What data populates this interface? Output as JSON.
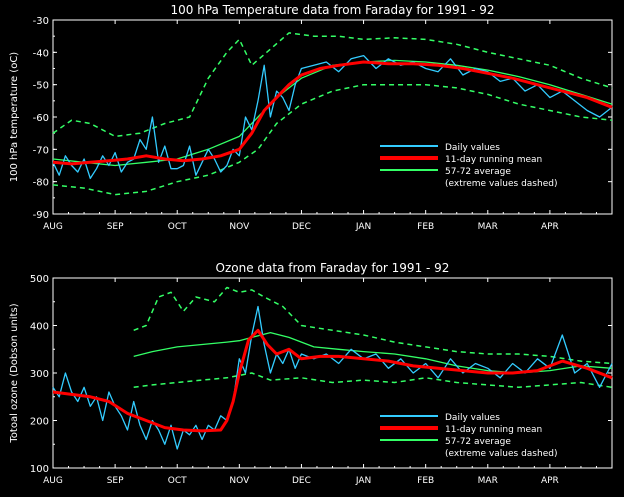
{
  "chart_data": [
    {
      "type": "line",
      "title": "100 hPa Temperature data from Faraday for 1991 - 92",
      "ylabel": "100 hPa temperature (oC)",
      "xlabel": "",
      "ylim": [
        -90,
        -30
      ],
      "yticks": [
        -30,
        -40,
        -50,
        -60,
        -70,
        -80,
        -90
      ],
      "xlim": [
        0,
        9
      ],
      "xticks": [
        "AUG",
        "SEP",
        "OCT",
        "NOV",
        "DEC",
        "JAN",
        "FEB",
        "MAR",
        "APR"
      ],
      "grid": false,
      "legend_position": "lower-right",
      "legend": [
        "Daily values",
        "11-day running mean",
        "57-72 average",
        "(extreme values dashed)"
      ],
      "series": [
        {
          "name": "Daily values",
          "color": "#33ccff",
          "x": [
            0.0,
            0.1,
            0.2,
            0.3,
            0.4,
            0.5,
            0.6,
            0.7,
            0.8,
            0.9,
            1.0,
            1.1,
            1.2,
            1.3,
            1.4,
            1.5,
            1.6,
            1.7,
            1.8,
            1.9,
            2.0,
            2.1,
            2.2,
            2.3,
            2.4,
            2.5,
            2.6,
            2.7,
            2.8,
            2.9,
            3.0,
            3.1,
            3.2,
            3.3,
            3.4,
            3.5,
            3.6,
            3.7,
            3.8,
            3.9,
            4.0,
            4.2,
            4.4,
            4.6,
            4.8,
            5.0,
            5.2,
            5.4,
            5.6,
            5.8,
            6.0,
            6.2,
            6.4,
            6.6,
            6.8,
            7.0,
            7.2,
            7.4,
            7.6,
            7.8,
            8.0,
            8.2,
            8.4,
            8.6,
            8.8,
            9.0
          ],
          "values": [
            -74,
            -78,
            -72,
            -75,
            -77,
            -73,
            -79,
            -76,
            -72,
            -75,
            -71,
            -77,
            -74,
            -73,
            -67,
            -70,
            -60,
            -74,
            -69,
            -76,
            -76,
            -75,
            -69,
            -78,
            -74,
            -70,
            -73,
            -77,
            -75,
            -70,
            -72,
            -60,
            -64,
            -55,
            -44,
            -60,
            -52,
            -54,
            -58,
            -50,
            -45,
            -44,
            -43,
            -46,
            -42,
            -41,
            -45,
            -42,
            -44,
            -43,
            -45,
            -46,
            -42,
            -47,
            -45,
            -46,
            -49,
            -48,
            -52,
            -50,
            -54,
            -52,
            -55,
            -58,
            -60,
            -57
          ]
        },
        {
          "name": "11-day running mean",
          "color": "#ff0000",
          "x": [
            0.0,
            0.3,
            0.6,
            0.9,
            1.2,
            1.5,
            1.8,
            2.1,
            2.4,
            2.7,
            3.0,
            3.2,
            3.4,
            3.6,
            3.8,
            4.0,
            4.3,
            4.6,
            5.0,
            5.4,
            5.8,
            6.2,
            6.6,
            7.0,
            7.4,
            7.8,
            8.2,
            8.6,
            9.0
          ],
          "values": [
            -74,
            -74.5,
            -74,
            -73.5,
            -73,
            -72,
            -73,
            -73.5,
            -73,
            -72,
            -70,
            -65,
            -58,
            -54,
            -50,
            -47,
            -45,
            -44,
            -43,
            -43.5,
            -43.5,
            -44,
            -45,
            -46.5,
            -48,
            -50,
            -52,
            -54,
            -57
          ]
        },
        {
          "name": "57-72 average",
          "color": "#33ff66",
          "x": [
            0.0,
            0.5,
            1.0,
            1.5,
            2.0,
            2.5,
            3.0,
            3.3,
            3.6,
            4.0,
            4.5,
            5.0,
            5.5,
            6.0,
            6.5,
            7.0,
            7.5,
            8.0,
            8.5,
            9.0
          ],
          "values": [
            -73,
            -74,
            -75,
            -74,
            -73,
            -70,
            -66,
            -60,
            -54,
            -48,
            -44,
            -43,
            -42.5,
            -43,
            -44,
            -45.5,
            -47.5,
            -50,
            -53,
            -56
          ]
        },
        {
          "name": "57-72 maximum (dashed)",
          "color": "#33ff66",
          "dashed": true,
          "x": [
            0.0,
            0.3,
            0.6,
            1.0,
            1.4,
            1.8,
            2.2,
            2.5,
            2.8,
            3.0,
            3.2,
            3.5,
            3.8,
            4.2,
            4.6,
            5.0,
            5.5,
            6.0,
            6.5,
            7.0,
            7.5,
            8.0,
            8.5,
            9.0
          ],
          "values": [
            -65,
            -61,
            -62,
            -66,
            -65,
            -62,
            -60,
            -48,
            -40,
            -36,
            -44,
            -39,
            -34,
            -35,
            -35,
            -36,
            -35.5,
            -36,
            -37.5,
            -40,
            -42,
            -44,
            -48,
            -51
          ]
        },
        {
          "name": "57-72 minimum (dashed)",
          "color": "#33ff66",
          "dashed": true,
          "x": [
            0.0,
            0.5,
            1.0,
            1.5,
            2.0,
            2.5,
            3.0,
            3.3,
            3.6,
            4.0,
            4.5,
            5.0,
            5.5,
            6.0,
            6.5,
            7.0,
            7.5,
            8.0,
            8.5,
            9.0
          ],
          "values": [
            -81,
            -82,
            -84,
            -83,
            -80,
            -78,
            -74,
            -70,
            -62,
            -56,
            -52,
            -50,
            -50,
            -50,
            -51,
            -53,
            -56,
            -58,
            -60,
            -61
          ]
        }
      ]
    },
    {
      "type": "line",
      "title": "Ozone data from Faraday for 1991 - 92",
      "ylabel": "Totoal ozone (Dobson units)",
      "xlabel": "",
      "ylim": [
        100,
        500
      ],
      "yticks": [
        100,
        200,
        300,
        400,
        500
      ],
      "xlim": [
        0,
        9
      ],
      "xticks": [
        "AUG",
        "SEP",
        "OCT",
        "NOV",
        "DEC",
        "JAN",
        "FEB",
        "MAR",
        "APR"
      ],
      "grid": false,
      "legend_position": "lower-right",
      "legend": [
        "Daily values",
        "11-day running mean",
        "57-72 average",
        "(extreme values dashed)"
      ],
      "series": [
        {
          "name": "Daily values",
          "color": "#33ccff",
          "x": [
            0.0,
            0.1,
            0.2,
            0.3,
            0.4,
            0.5,
            0.6,
            0.7,
            0.8,
            0.9,
            1.0,
            1.1,
            1.2,
            1.3,
            1.4,
            1.5,
            1.6,
            1.7,
            1.8,
            1.9,
            2.0,
            2.1,
            2.2,
            2.3,
            2.4,
            2.5,
            2.6,
            2.7,
            2.8,
            2.9,
            3.0,
            3.1,
            3.2,
            3.3,
            3.4,
            3.5,
            3.6,
            3.7,
            3.8,
            3.9,
            4.0,
            4.2,
            4.4,
            4.6,
            4.8,
            5.0,
            5.2,
            5.4,
            5.6,
            5.8,
            6.0,
            6.2,
            6.4,
            6.6,
            6.8,
            7.0,
            7.2,
            7.4,
            7.6,
            7.8,
            8.0,
            8.2,
            8.4,
            8.6,
            8.8,
            9.0
          ],
          "values": [
            270,
            250,
            300,
            260,
            240,
            270,
            230,
            250,
            200,
            260,
            230,
            210,
            180,
            240,
            190,
            160,
            200,
            180,
            150,
            190,
            140,
            180,
            170,
            190,
            160,
            190,
            180,
            210,
            200,
            240,
            330,
            300,
            380,
            440,
            360,
            300,
            340,
            320,
            350,
            310,
            340,
            330,
            340,
            320,
            350,
            330,
            340,
            310,
            330,
            300,
            320,
            290,
            330,
            300,
            320,
            310,
            290,
            320,
            300,
            330,
            310,
            380,
            300,
            320,
            270,
            320
          ]
        },
        {
          "name": "11-day running mean",
          "color": "#ff0000",
          "x": [
            0.0,
            0.3,
            0.6,
            0.9,
            1.2,
            1.5,
            1.8,
            2.1,
            2.4,
            2.7,
            2.8,
            2.9,
            3.0,
            3.15,
            3.3,
            3.45,
            3.6,
            3.8,
            4.0,
            4.3,
            4.6,
            5.0,
            5.4,
            5.8,
            6.2,
            6.6,
            7.0,
            7.4,
            7.8,
            8.2,
            8.6,
            9.0
          ],
          "values": [
            260,
            255,
            250,
            240,
            215,
            200,
            185,
            180,
            178,
            180,
            200,
            240,
            300,
            370,
            390,
            360,
            340,
            350,
            330,
            335,
            335,
            330,
            325,
            315,
            310,
            305,
            300,
            300,
            305,
            325,
            310,
            290
          ]
        },
        {
          "name": "57-72 average",
          "color": "#33ff66",
          "x": [
            1.3,
            1.6,
            2.0,
            2.4,
            2.8,
            3.0,
            3.2,
            3.5,
            3.8,
            4.2,
            4.6,
            5.0,
            5.5,
            6.0,
            6.5,
            7.0,
            7.5,
            8.0,
            8.5,
            9.0
          ],
          "values": [
            335,
            345,
            355,
            360,
            365,
            368,
            375,
            385,
            375,
            355,
            350,
            345,
            340,
            330,
            315,
            305,
            300,
            305,
            315,
            310
          ]
        },
        {
          "name": "57-72 maximum (dashed)",
          "color": "#33ff66",
          "dashed": true,
          "x": [
            1.3,
            1.5,
            1.7,
            1.9,
            2.1,
            2.3,
            2.6,
            2.8,
            3.0,
            3.2,
            3.4,
            3.7,
            4.0,
            4.5,
            5.0,
            5.5,
            6.0,
            6.5,
            7.0,
            7.5,
            8.0,
            8.5,
            9.0
          ],
          "values": [
            390,
            400,
            460,
            470,
            430,
            460,
            450,
            480,
            470,
            475,
            460,
            440,
            400,
            390,
            380,
            365,
            355,
            345,
            340,
            340,
            335,
            325,
            320
          ]
        },
        {
          "name": "57-72 minimum (dashed)",
          "color": "#33ff66",
          "dashed": true,
          "x": [
            1.3,
            1.6,
            2.0,
            2.4,
            2.8,
            3.0,
            3.2,
            3.5,
            4.0,
            4.5,
            5.0,
            5.5,
            6.0,
            6.5,
            7.0,
            7.5,
            8.0,
            8.5,
            9.0
          ],
          "values": [
            270,
            275,
            280,
            285,
            290,
            295,
            300,
            285,
            290,
            280,
            285,
            280,
            290,
            280,
            275,
            270,
            275,
            280,
            270
          ]
        }
      ]
    }
  ]
}
